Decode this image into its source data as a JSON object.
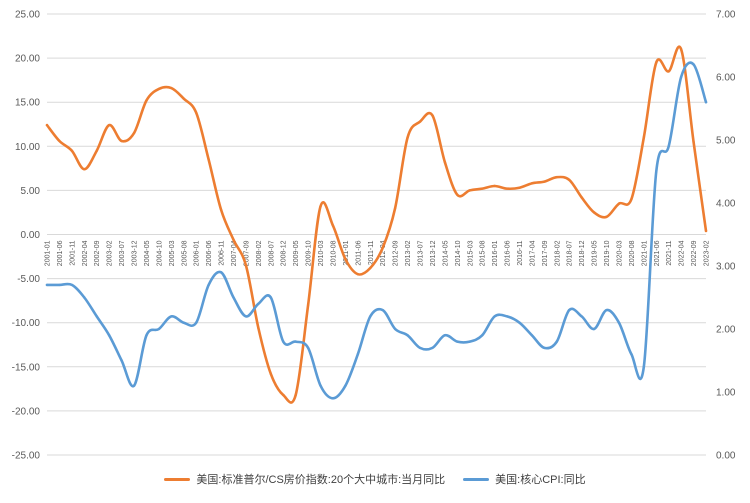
{
  "chart_data": {
    "type": "line",
    "x": [
      "2001-01",
      "2001-06",
      "2001-11",
      "2002-04",
      "2002-09",
      "2003-02",
      "2003-07",
      "2003-12",
      "2004-05",
      "2004-10",
      "2005-03",
      "2005-08",
      "2006-01",
      "2006-06",
      "2006-11",
      "2007-04",
      "2007-09",
      "2008-02",
      "2008-07",
      "2008-12",
      "2009-05",
      "2009-10",
      "2010-03",
      "2010-08",
      "2011-01",
      "2011-06",
      "2011-11",
      "2012-04",
      "2012-09",
      "2013-02",
      "2013-07",
      "2013-12",
      "2014-05",
      "2014-10",
      "2015-03",
      "2015-08",
      "2016-01",
      "2016-06",
      "2016-11",
      "2017-04",
      "2017-09",
      "2018-02",
      "2018-07",
      "2018-12",
      "2019-05",
      "2019-10",
      "2020-03",
      "2020-08",
      "2021-01",
      "2021-06",
      "2021-11",
      "2022-04",
      "2022-09",
      "2023-02"
    ],
    "left_axis": {
      "ylim": [
        -25,
        25
      ],
      "ticks": [
        "25.00",
        "20.00",
        "15.00",
        "10.00",
        "5.00",
        "0.00",
        "-5.00",
        "-10.00",
        "-15.00",
        "-20.00",
        "-25.00"
      ]
    },
    "right_axis": {
      "ylim": [
        0,
        7
      ],
      "ticks": [
        "7.00",
        "6.00",
        "5.00",
        "4.00",
        "3.00",
        "2.00",
        "1.00",
        "0.00"
      ]
    },
    "series": [
      {
        "name": "美国:标准普尔/CS房价指数:20个大中城市:当月同比",
        "axis": "left",
        "color": "#ED7D31",
        "values": [
          12.4,
          10.6,
          9.5,
          7.4,
          9.5,
          12.4,
          10.6,
          11.5,
          15.2,
          16.5,
          16.6,
          15.4,
          13.8,
          8.5,
          2.8,
          -0.6,
          -3.5,
          -10.6,
          -15.8,
          -18.2,
          -18.2,
          -8.0,
          3.2,
          1.0,
          -2.8,
          -4.5,
          -3.8,
          -1.5,
          3.0,
          11.0,
          12.8,
          13.5,
          8.2,
          4.5,
          5.0,
          5.2,
          5.5,
          5.2,
          5.3,
          5.8,
          6.0,
          6.5,
          6.2,
          4.2,
          2.5,
          2.0,
          3.5,
          4.0,
          11.0,
          19.5,
          18.5,
          21.0,
          10.5,
          0.4
        ]
      },
      {
        "name": "美国:核心CPI:同比",
        "axis": "right",
        "color": "#5B9BD5",
        "values": [
          2.7,
          2.7,
          2.7,
          2.5,
          2.2,
          1.9,
          1.5,
          1.1,
          1.9,
          2.0,
          2.2,
          2.1,
          2.1,
          2.7,
          2.9,
          2.5,
          2.2,
          2.4,
          2.5,
          1.8,
          1.8,
          1.7,
          1.1,
          0.9,
          1.1,
          1.6,
          2.2,
          2.3,
          2.0,
          1.9,
          1.7,
          1.7,
          1.9,
          1.8,
          1.8,
          1.9,
          2.2,
          2.2,
          2.1,
          1.9,
          1.7,
          1.8,
          2.3,
          2.2,
          2.0,
          2.3,
          2.1,
          1.6,
          1.4,
          4.5,
          4.9,
          6.0,
          6.2,
          5.6
        ]
      }
    ]
  }
}
